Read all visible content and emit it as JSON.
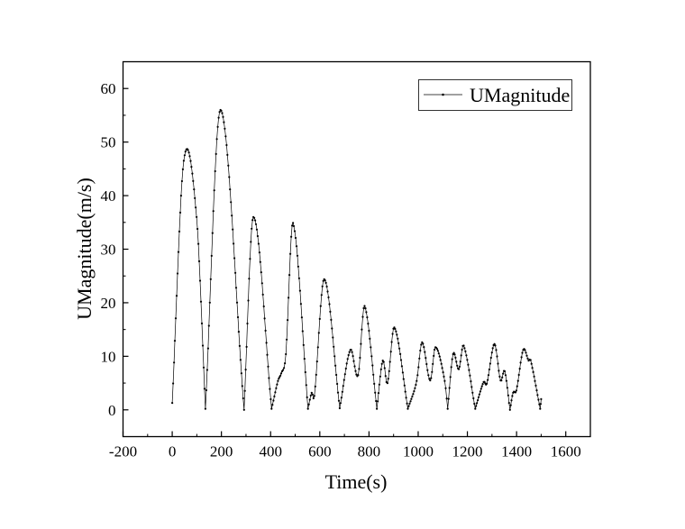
{
  "chart_data": {
    "type": "line",
    "title": "",
    "xlabel": "Time(s)",
    "ylabel": "UMagnitude(m/s)",
    "xlim": [
      -200,
      1700
    ],
    "ylim": [
      -5,
      65
    ],
    "xticks": [
      -200,
      0,
      200,
      400,
      600,
      800,
      1000,
      1200,
      1400,
      1600
    ],
    "yticks": [
      0,
      10,
      20,
      30,
      40,
      50,
      60
    ],
    "grid": false,
    "legend_position": "top-right",
    "line_color": "#000000",
    "series": [
      {
        "name": "UMagnitude",
        "x": [
          0,
          47,
          99,
          135,
          196,
          292,
          330,
          404,
          430,
          443,
          462,
          491,
          552,
          567,
          578,
          618,
          681,
          724,
          756,
          782,
          832,
          856,
          875,
          903,
          958,
          994,
          1016,
          1049,
          1070,
          1108,
          1120,
          1142,
          1165,
          1185,
          1232,
          1266,
          1279,
          1310,
          1335,
          1352,
          1373,
          1386,
          1399,
          1427,
          1449,
          1457,
          1496,
          1500
        ],
        "y": [
          1.3,
          46.5,
          36,
          0.2,
          56,
          0,
          36,
          0.2,
          5.4,
          6.8,
          10.4,
          34.9,
          0.2,
          3.2,
          2.6,
          24.4,
          0.3,
          11.2,
          6.5,
          19.4,
          0.2,
          9.2,
          5,
          15.4,
          0.2,
          5.4,
          12.6,
          5.5,
          11.7,
          5.4,
          0.2,
          10.4,
          7.6,
          12,
          0.2,
          5.2,
          4.9,
          12.3,
          5.5,
          7.2,
          0,
          3.2,
          3.6,
          11.2,
          9.2,
          9.3,
          0.2,
          2
        ]
      }
    ]
  }
}
